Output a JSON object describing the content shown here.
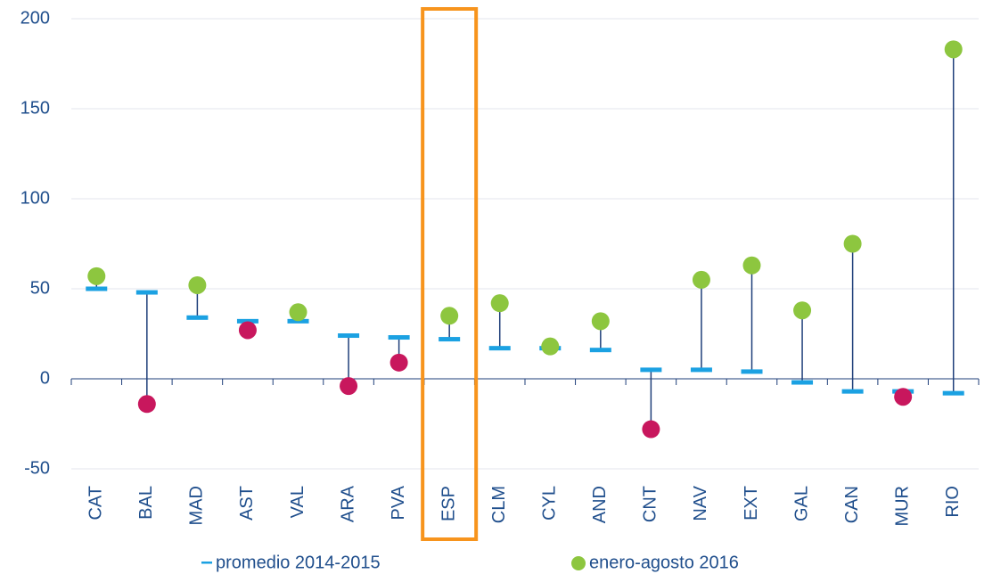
{
  "chart_data": {
    "type": "dotplot",
    "categories": [
      "CAT",
      "BAL",
      "MAD",
      "AST",
      "VAL",
      "ARA",
      "PVA",
      "ESP",
      "CLM",
      "CYL",
      "AND",
      "CNT",
      "NAV",
      "EXT",
      "GAL",
      "CAN",
      "MUR",
      "RIO"
    ],
    "series": [
      {
        "name": "promedio 2014-2015",
        "color": "#1ba1e2",
        "marker": "dash",
        "values": [
          50,
          48,
          34,
          32,
          32,
          24,
          23,
          22,
          17,
          17,
          16,
          5,
          5,
          4,
          -2,
          -7,
          -7,
          -8
        ]
      },
      {
        "name": "enero-agosto 2016",
        "color": "#8dc63f",
        "marker": "circle",
        "colors": [
          "#8dc63f",
          "#c8175d",
          "#8dc63f",
          "#c8175d",
          "#8dc63f",
          "#c8175d",
          "#c8175d",
          "#8dc63f",
          "#8dc63f",
          "#8dc63f",
          "#8dc63f",
          "#c8175d",
          "#8dc63f",
          "#8dc63f",
          "#8dc63f",
          "#8dc63f",
          "#c8175d",
          "#8dc63f"
        ],
        "values": [
          57,
          -14,
          52,
          27,
          37,
          -4,
          9,
          35,
          42,
          18,
          32,
          -28,
          55,
          63,
          38,
          75,
          -10,
          183
        ]
      }
    ],
    "connector_color": "#1f3f7a",
    "highlight": {
      "category": "ESP",
      "color": "#f7941d"
    },
    "ylim": [
      -50,
      200
    ],
    "yticks": [
      -50,
      0,
      50,
      100,
      150,
      200
    ],
    "grid": true
  }
}
